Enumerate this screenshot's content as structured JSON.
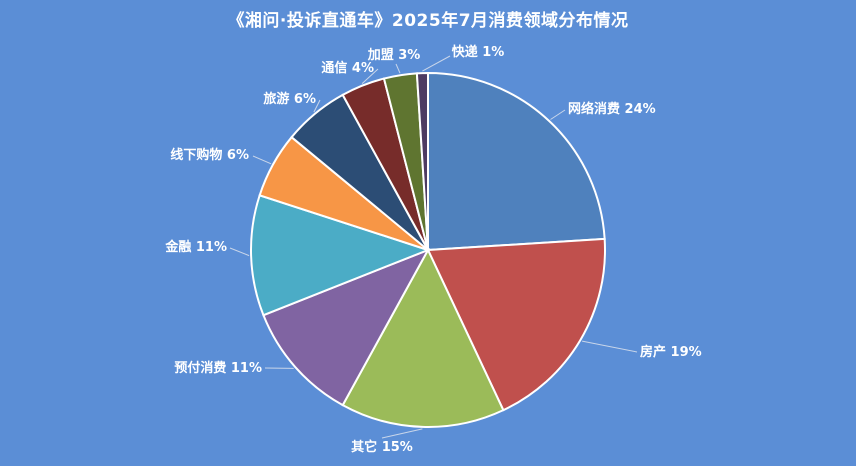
{
  "chart_data": {
    "type": "pie",
    "title": "《湘问·投诉直通车》2025年7月消费领域分布情况",
    "slices": [
      {
        "label": "网络消费",
        "value": 24,
        "pct_text": "24%",
        "color": "#4F81BD"
      },
      {
        "label": "房产",
        "value": 19,
        "pct_text": "19%",
        "color": "#C0504D"
      },
      {
        "label": "其它",
        "value": 15,
        "pct_text": "15%",
        "color": "#9BBB59"
      },
      {
        "label": "预付消费",
        "value": 11,
        "pct_text": "11%",
        "color": "#8064A2"
      },
      {
        "label": "金融",
        "value": 11,
        "pct_text": "11%",
        "color": "#4BACC6"
      },
      {
        "label": "线下购物",
        "value": 6,
        "pct_text": "6%",
        "color": "#F79646"
      },
      {
        "label": "旅游",
        "value": 6,
        "pct_text": "6%",
        "color": "#2C4D75"
      },
      {
        "label": "通信",
        "value": 4,
        "pct_text": "4%",
        "color": "#772C2A"
      },
      {
        "label": "加盟",
        "value": 3,
        "pct_text": "3%",
        "color": "#5F7530"
      },
      {
        "label": "快递",
        "value": 1,
        "pct_text": "1%",
        "color": "#4D3B62"
      }
    ],
    "start": "12 o'clock",
    "direction": "clockwise",
    "background": "#5B8ED6",
    "slice_border": "#ffffff",
    "legend": "none"
  }
}
